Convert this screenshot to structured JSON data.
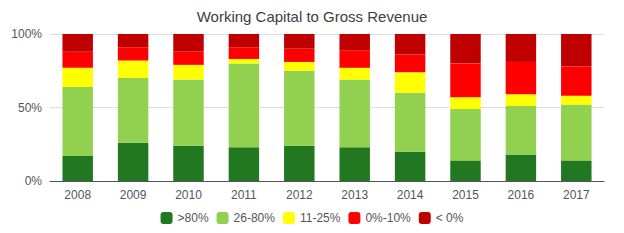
{
  "chart_data": {
    "type": "bar",
    "title": "Working Capital to Gross Revenue",
    "categories": [
      "2008",
      "2009",
      "2010",
      "2011",
      "2012",
      "2013",
      "2014",
      "2015",
      "2016",
      "2017"
    ],
    "series": [
      {
        "name": ">80%",
        "color": "#217821",
        "values": [
          17,
          26,
          24,
          23,
          24,
          23,
          20,
          14,
          18,
          14
        ]
      },
      {
        "name": "26-80%",
        "color": "#92d050",
        "values": [
          47,
          44,
          45,
          57,
          51,
          46,
          40,
          35,
          33,
          38
        ]
      },
      {
        "name": "11-25%",
        "color": "#ffff00",
        "values": [
          13,
          12,
          10,
          3,
          6,
          8,
          14,
          8,
          8,
          6
        ]
      },
      {
        "name": "0%-10%",
        "color": "#ff0000",
        "values": [
          11,
          9,
          9,
          8,
          9,
          12,
          12,
          23,
          22,
          20
        ]
      },
      {
        "name": "< 0%",
        "color": "#c00000",
        "values": [
          12,
          9,
          12,
          9,
          10,
          11,
          14,
          20,
          19,
          22
        ]
      }
    ],
    "ylim": [
      0,
      100
    ],
    "yticks": [
      {
        "value": 0,
        "label": "0%"
      },
      {
        "value": 50,
        "label": "50%"
      },
      {
        "value": 100,
        "label": "100%"
      }
    ],
    "stacked": true,
    "grid": true,
    "legend": "bottom"
  }
}
